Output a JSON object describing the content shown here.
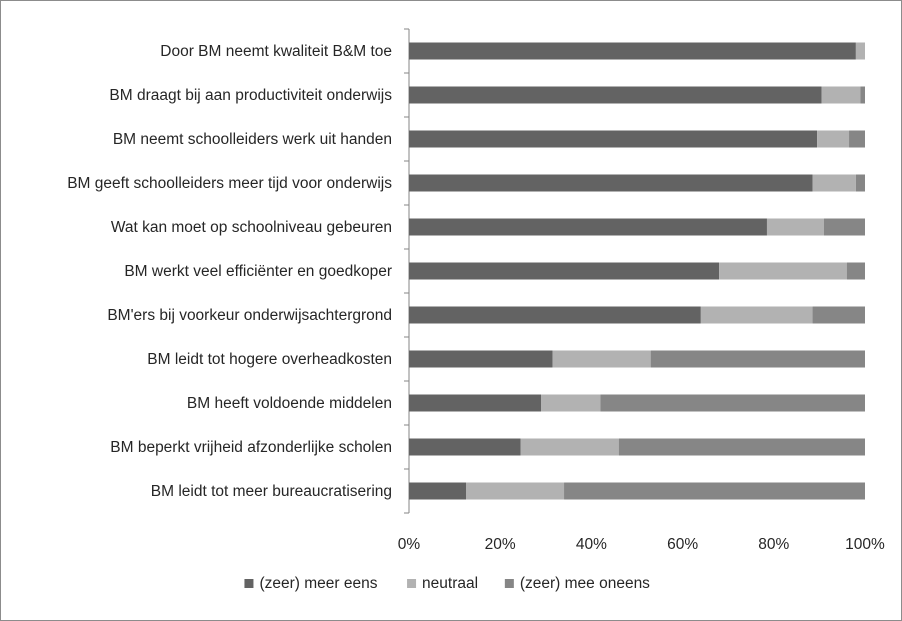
{
  "chart_data": {
    "type": "bar",
    "orientation": "horizontal",
    "stacking": "percent",
    "categories": [
      "Door BM neemt kwaliteit B&M toe",
      "BM draagt bij aan productiviteit onderwijs",
      "BM neemt schoolleiders werk uit handen",
      "BM geeft schoolleiders meer tijd voor onderwijs",
      "Wat kan moet op schoolniveau gebeuren",
      "BM werkt veel efficiënter en goedkoper",
      "BM'ers bij voorkeur onderwijsachtergrond",
      "BM leidt tot hogere overheadkosten",
      "BM heeft voldoende middelen",
      "BM beperkt vrijheid afzonderlijke scholen",
      "BM leidt tot meer bureaucratisering"
    ],
    "series": [
      {
        "name": "(zeer) meer eens",
        "color": "#636363",
        "values": [
          98,
          90.5,
          89.5,
          88.5,
          78.5,
          68,
          64,
          31.5,
          29,
          24.5,
          12.5
        ]
      },
      {
        "name": "neutraal",
        "color": "#b2b2b2",
        "values": [
          2,
          8.5,
          7,
          9.5,
          12.5,
          28,
          24.5,
          21.5,
          13,
          21.5,
          21.5
        ]
      },
      {
        "name": "(zeer) mee oneens",
        "color": "#868686",
        "values": [
          0,
          1,
          3.5,
          2,
          9,
          4,
          11.5,
          47,
          58,
          54,
          66
        ]
      }
    ],
    "xticks": [
      "0%",
      "20%",
      "40%",
      "60%",
      "80%",
      "100%"
    ],
    "xlim": [
      0,
      100
    ],
    "grid": false,
    "legend_position": "bottom",
    "title": "",
    "xlabel": "",
    "ylabel": ""
  }
}
